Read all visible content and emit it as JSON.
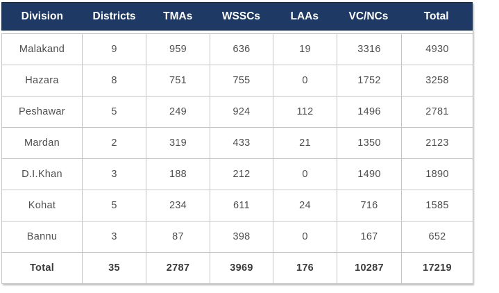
{
  "colors": {
    "header_bg": "#1e3a64",
    "header_text": "#ffffff",
    "body_text": "#4f4f4f",
    "total_text": "#3b3b3b",
    "cell_border": "#c4c4c4"
  },
  "table": {
    "header": [
      "Division",
      "Districts",
      "TMAs",
      "WSSCs",
      "LAAs",
      "VC/NCs",
      "Total"
    ],
    "rows": [
      {
        "cells": [
          "Malakand",
          "9",
          "959",
          "636",
          "19",
          "3316",
          "4930"
        ],
        "bold": false
      },
      {
        "cells": [
          "Hazara",
          "8",
          "751",
          "755",
          "0",
          "1752",
          "3258"
        ],
        "bold": false
      },
      {
        "cells": [
          "Peshawar",
          "5",
          "249",
          "924",
          "112",
          "1496",
          "2781"
        ],
        "bold": false
      },
      {
        "cells": [
          "Mardan",
          "2",
          "319",
          "433",
          "21",
          "1350",
          "2123"
        ],
        "bold": false
      },
      {
        "cells": [
          "D.I.Khan",
          "3",
          "188",
          "212",
          "0",
          "1490",
          "1890"
        ],
        "bold": false
      },
      {
        "cells": [
          "Kohat",
          "5",
          "234",
          "611",
          "24",
          "716",
          "1585"
        ],
        "bold": false
      },
      {
        "cells": [
          "Bannu",
          "3",
          "87",
          "398",
          "0",
          "167",
          "652"
        ],
        "bold": false
      },
      {
        "cells": [
          "Total",
          "35",
          "2787",
          "3969",
          "176",
          "10287",
          "17219"
        ],
        "bold": true
      }
    ]
  },
  "chart_data": {
    "type": "table",
    "title": "",
    "columns": [
      "Division",
      "Districts",
      "TMAs",
      "WSSCs",
      "LAAs",
      "VC/NCs",
      "Total"
    ],
    "rows": [
      [
        "Malakand",
        9,
        959,
        636,
        19,
        3316,
        4930
      ],
      [
        "Hazara",
        8,
        751,
        755,
        0,
        1752,
        3258
      ],
      [
        "Peshawar",
        5,
        249,
        924,
        112,
        1496,
        2781
      ],
      [
        "Mardan",
        2,
        319,
        433,
        21,
        1350,
        2123
      ],
      [
        "D.I.Khan",
        3,
        188,
        212,
        0,
        1490,
        1890
      ],
      [
        "Kohat",
        5,
        234,
        611,
        24,
        716,
        1585
      ],
      [
        "Bannu",
        3,
        87,
        398,
        0,
        167,
        652
      ]
    ],
    "totals": [
      "Total",
      35,
      2787,
      3969,
      176,
      10287,
      17219
    ],
    "layout": {
      "header_style": "solid navy bar, white bold centered text",
      "body_style": "white cells, light gray 1px borders, centered gray text",
      "total_row_style": "bold dark text"
    }
  }
}
